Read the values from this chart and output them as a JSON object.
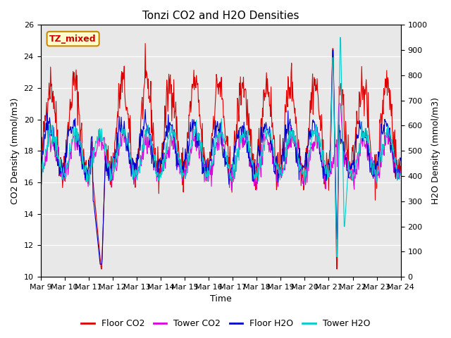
{
  "title": "Tonzi CO2 and H2O Densities",
  "xlabel": "Time",
  "ylabel_left": "CO2 Density (mmol/m3)",
  "ylabel_right": "H2O Density (mmol/m3)",
  "ylim_left": [
    10,
    26
  ],
  "ylim_right": [
    0,
    1000
  ],
  "yticks_left": [
    10,
    12,
    14,
    16,
    18,
    20,
    22,
    24,
    26
  ],
  "yticks_right": [
    0,
    100,
    200,
    300,
    400,
    500,
    600,
    700,
    800,
    900,
    1000
  ],
  "n_days": 15,
  "pts_per_day": 48,
  "plot_bg_color": "#e8e8e8",
  "floor_co2_color": "#dd0000",
  "tower_co2_color": "#dd00dd",
  "floor_h2o_color": "#0000cc",
  "tower_h2o_color": "#00cccc",
  "legend_labels": [
    "Floor CO2",
    "Tower CO2",
    "Floor H2O",
    "Tower H2O"
  ],
  "annotation_text": "TZ_mixed",
  "annotation_color": "#cc0000",
  "annotation_bg": "#ffffcc",
  "annotation_border": "#cc8800",
  "title_fontsize": 11,
  "axis_fontsize": 9,
  "tick_fontsize": 8,
  "linewidth": 0.8,
  "x_day_labels": [
    "Mar 9",
    "Mar 10",
    "Mar 11",
    "Mar 12",
    "Mar 13",
    "Mar 14",
    "Mar 15",
    "Mar 16",
    "Mar 17",
    "Mar 18",
    "Mar 19",
    "Mar 20",
    "Mar 21",
    "Mar 22",
    "Mar 23",
    "Mar 24"
  ],
  "x_tick_positions": [
    0,
    1,
    2,
    3,
    4,
    5,
    6,
    7,
    8,
    9,
    10,
    11,
    12,
    13,
    14,
    15
  ]
}
